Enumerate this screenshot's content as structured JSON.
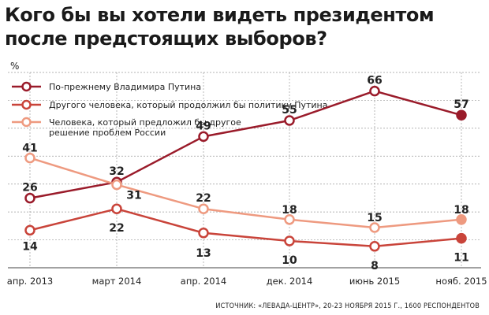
{
  "chart_data": {
    "type": "line",
    "title": "Кого бы вы хотели видеть президентом после предстоящих выборов?",
    "unit_label": "%",
    "x": [
      "апр. 2013",
      "март 2014",
      "апр. 2014",
      "дек. 2014",
      "июнь 2015",
      "нояб. 2015"
    ],
    "series": [
      {
        "name": "По-прежнему Владимира Путина",
        "values": [
          26,
          32,
          49,
          55,
          66,
          57
        ],
        "color": "#9a1b2a"
      },
      {
        "name": "Другого человека, который продолжил бы политику Путина",
        "values": [
          14,
          22,
          13,
          10,
          8,
          11
        ],
        "color": "#c9443a"
      },
      {
        "name": "Человека, который предложил бы другое решение проблем России",
        "values": [
          41,
          31,
          22,
          18,
          15,
          18
        ],
        "color": "#ee9a80"
      }
    ],
    "legend_lines": [
      [
        "По-прежнему Владимира Путина"
      ],
      [
        "Другого человека, который продолжил бы политику Путина"
      ],
      [
        "Человека, который предложил бы другое",
        "решение проблем России"
      ]
    ],
    "grid": true,
    "legend_position": "top-left",
    "source": "ИСТОЧНИК: «ЛЕВАДА-ЦЕНТР», 20-23 НОЯБРЯ 2015 Г., 1600 РЕСПОНДЕНТОВ"
  }
}
